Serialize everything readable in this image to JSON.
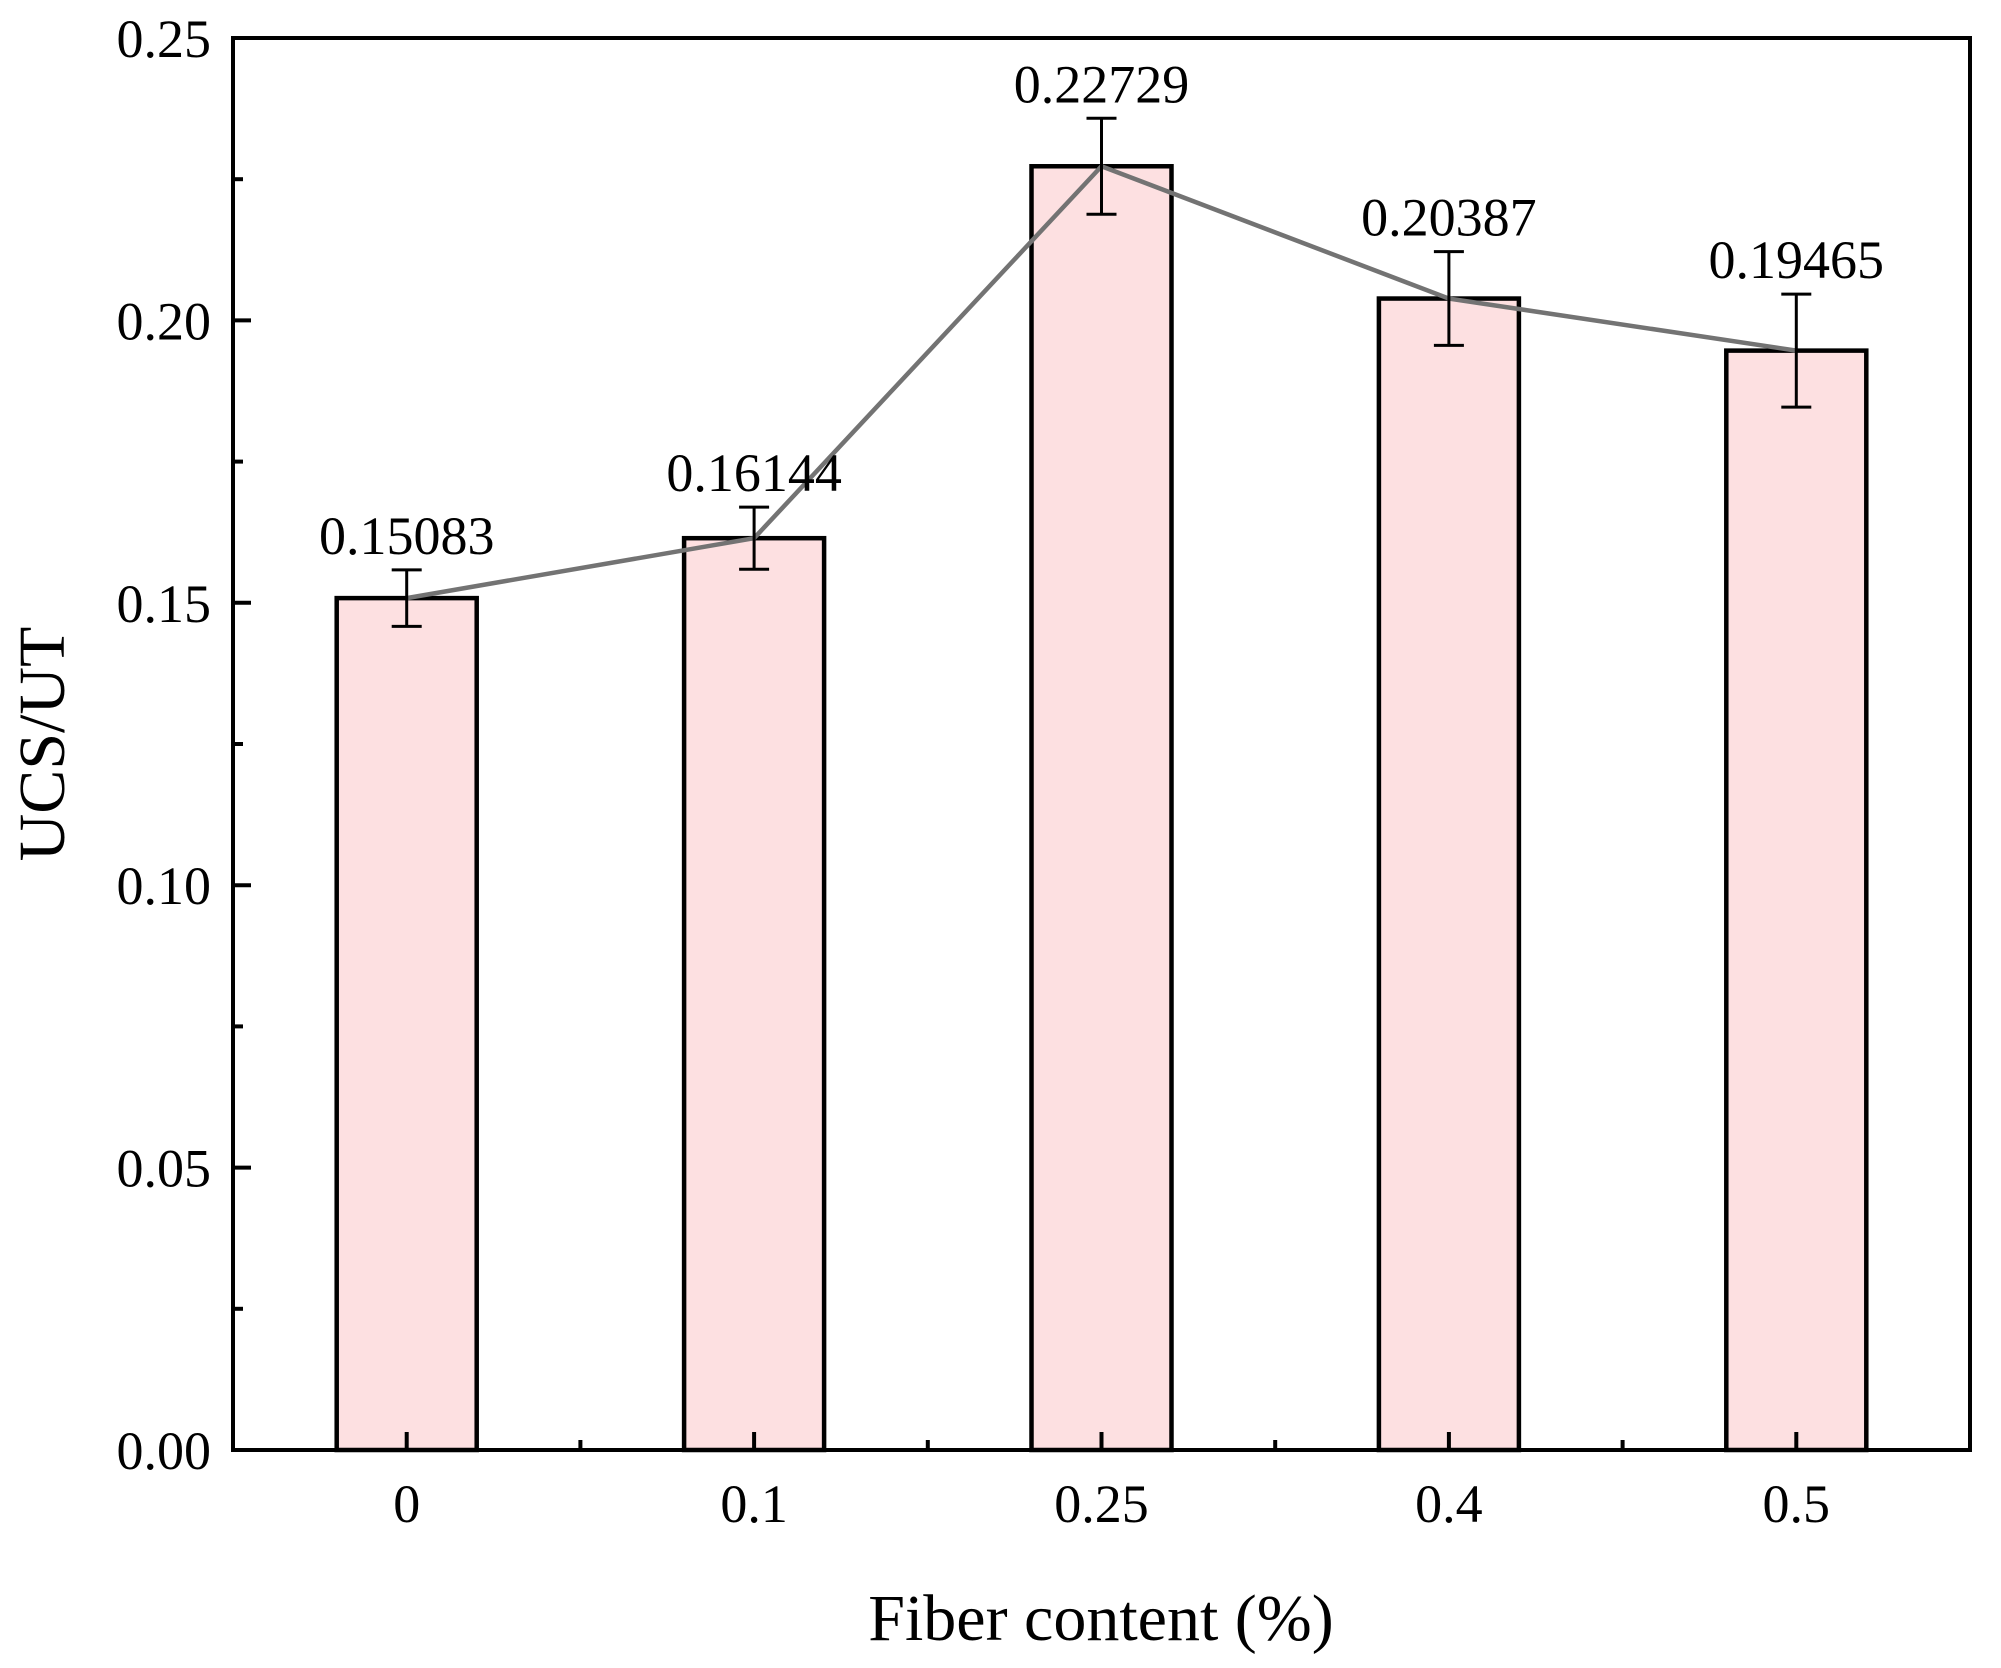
{
  "chart_data": {
    "type": "bar",
    "title": "",
    "xlabel": "Fiber content (%)",
    "ylabel": "UCS/UT",
    "categories": [
      "0",
      "0.1",
      "0.25",
      "0.4",
      "0.5"
    ],
    "values": [
      0.15083,
      0.16144,
      0.22729,
      0.20387,
      0.19465
    ],
    "value_labels": [
      "0.15083",
      "0.16144",
      "0.22729",
      "0.20387",
      "0.19465"
    ],
    "error": [
      0.005,
      0.0055,
      0.0085,
      0.0083,
      0.01
    ],
    "ylim": [
      0,
      0.25
    ],
    "yticks": [
      "0.00",
      "0.05",
      "0.10",
      "0.15",
      "0.20",
      "0.25"
    ],
    "grid": false,
    "legend": "none",
    "trend_line": true,
    "colors": {
      "bar_fill": "#fde0e1",
      "bar_stroke": "#000000",
      "line": "#737373",
      "axis": "#000000"
    }
  }
}
